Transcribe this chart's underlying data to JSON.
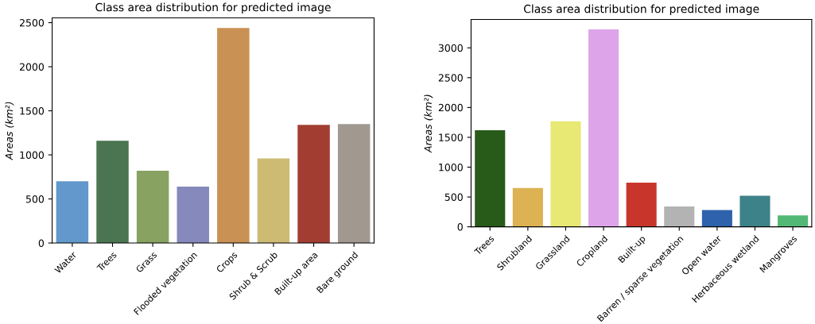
{
  "chart_data": [
    {
      "type": "bar",
      "title": "Class area distribution for predicted image",
      "ylabel": "Areas (km²)",
      "categories": [
        "Water",
        "Trees",
        "Grass",
        "Flooded vegetation",
        "Crops",
        "Shrub & Scrub",
        "Built-up area",
        "Bare ground"
      ],
      "values": [
        700,
        1160,
        820,
        640,
        2440,
        960,
        1340,
        1350
      ],
      "colors": [
        "#6298cc",
        "#4a7550",
        "#88a262",
        "#8689bb",
        "#c99154",
        "#cdbb74",
        "#a23d32",
        "#a19890"
      ],
      "ylim": [
        0,
        2555
      ],
      "yticks": [
        0,
        500,
        1000,
        1500,
        2000,
        2500
      ],
      "grid": false,
      "legend": false
    },
    {
      "type": "bar",
      "title": "Class area distribution for predicted image",
      "ylabel": "Areas (km²)",
      "categories": [
        "Trees",
        "Shrubland",
        "Grassland",
        "Cropland",
        "Built-up",
        "Barren / sparse vegetation",
        "Open water",
        "Herbaceous wetland",
        "Mangroves"
      ],
      "values": [
        1620,
        650,
        1770,
        3310,
        740,
        340,
        280,
        520,
        190
      ],
      "colors": [
        "#285a19",
        "#dcb252",
        "#e8e874",
        "#dea4ea",
        "#c8362b",
        "#b3b3b3",
        "#2e62ac",
        "#3d8288",
        "#52b876"
      ],
      "ylim": [
        0,
        3476
      ],
      "yticks": [
        0,
        500,
        1000,
        1500,
        2000,
        2500,
        3000
      ],
      "grid": false,
      "legend": false
    }
  ]
}
